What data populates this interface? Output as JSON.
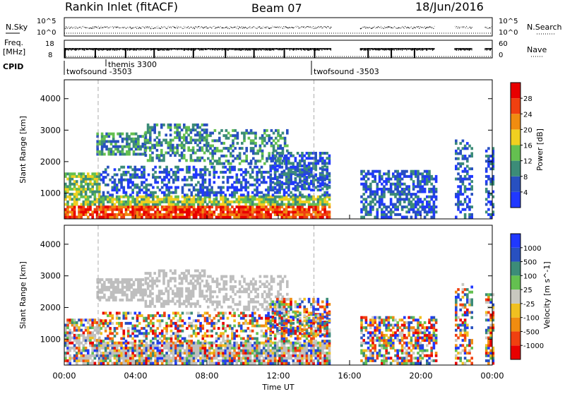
{
  "header": {
    "station": "Rankin Inlet (fitACF)",
    "beam": "Beam 07",
    "date": "18/Jun/2016"
  },
  "strips": {
    "nsky_label": "N.Sky",
    "freq_label_1": "Freq.",
    "freq_label_2": "[MHz]",
    "cpid_label": "CPID",
    "nsearch_label": "N.Search",
    "nave_label": "Nave",
    "nsky_ticks": [
      "10^5",
      "10^0"
    ],
    "nsearch_ticks": [
      "10^5",
      "10^0"
    ],
    "freq_ticks": [
      "18",
      "8"
    ],
    "nave_ticks": [
      "60",
      "0"
    ],
    "programs": [
      {
        "name": "twofsound -3503",
        "start_hour": 0.0
      },
      {
        "name": "themis 3300",
        "start_hour": 1.9
      },
      {
        "name": "twofsound -3503",
        "start_hour": 14.0
      }
    ]
  },
  "colors": {
    "power": [
      "#2038ff",
      "#2850c0",
      "#3c8c78",
      "#64c050",
      "#f0d020",
      "#f08c10",
      "#f04010",
      "#e80000"
    ],
    "velocity": [
      "#e80000",
      "#f04010",
      "#f08c10",
      "#f0c020",
      "#c8c8c0",
      "#64c050",
      "#3c8c78",
      "#2850c0",
      "#2038ff"
    ],
    "ground_scatter": "#bebebe"
  },
  "chart_data": [
    {
      "type": "heatmap",
      "parameter": "power",
      "xlabel": "",
      "ylabel": "Slant Range [km]",
      "xlim": [
        0,
        24
      ],
      "ylim": [
        180,
        4600
      ],
      "y_ticks": [
        1000,
        2000,
        3000,
        4000
      ],
      "colorbar": {
        "label": "Power [dB]",
        "range": [
          0,
          32
        ],
        "ticks": [
          "4",
          "8",
          "12",
          "16",
          "20",
          "24",
          "28"
        ]
      },
      "data_gaps_hours": [
        [
          15.0,
          16.6
        ],
        [
          20.8,
          21.9
        ],
        [
          22.9,
          23.6
        ]
      ]
    },
    {
      "type": "heatmap",
      "parameter": "velocity",
      "xlabel": "Time UT",
      "ylabel": "Slant Range [km]",
      "xlim": [
        0,
        24
      ],
      "ylim": [
        180,
        4600
      ],
      "y_ticks": [
        1000,
        2000,
        3000,
        4000
      ],
      "x_ticks": [
        "00:00",
        "04:00",
        "08:00",
        "12:00",
        "16:00",
        "20:00",
        "00:00"
      ],
      "colorbar": {
        "label": "Velocity [m s^-1]",
        "ticks": [
          "1000",
          "500",
          "100",
          "25",
          "-25",
          "-100",
          "-500",
          "-1000"
        ]
      },
      "data_gaps_hours": [
        [
          15.0,
          16.6
        ],
        [
          20.8,
          21.9
        ],
        [
          22.9,
          23.6
        ]
      ]
    }
  ]
}
